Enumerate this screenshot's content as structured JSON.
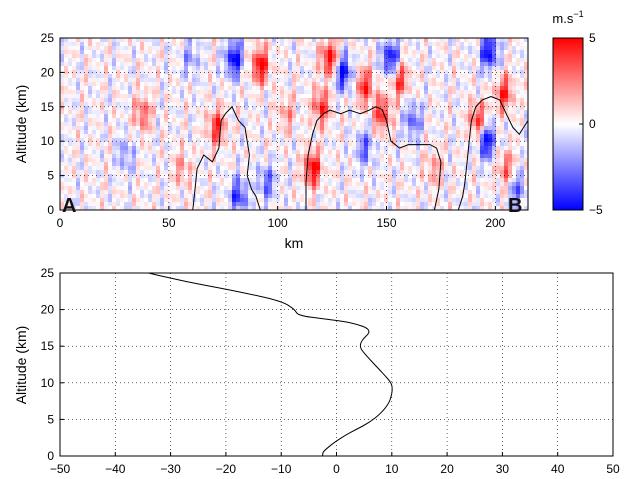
{
  "chart_data": [
    {
      "type": "heatmap",
      "title": "",
      "xlabel": "km",
      "ylabel": "Altitude (km)",
      "xlim": [
        0,
        215
      ],
      "ylim": [
        0,
        25
      ],
      "x_ticks": [
        0,
        50,
        100,
        150,
        200
      ],
      "y_ticks": [
        0,
        5,
        10,
        15,
        20,
        25
      ],
      "grid": true,
      "colormap": {
        "min_color": "#0000ff",
        "mid_color": "#ffffff",
        "max_color": "#ff0000"
      },
      "colorbar": {
        "unit_base": "m.s",
        "unit_exp": "−1",
        "min": -5,
        "max": 5,
        "ticks": [
          "5",
          "0",
          "−5"
        ]
      },
      "endpoint_labels": {
        "start": "A",
        "end": "B"
      },
      "contour_color": "#000000",
      "strong_features": [
        {
          "x": 80,
          "y": 22,
          "value": -5
        },
        {
          "x": 92,
          "y": 21,
          "value": 5
        },
        {
          "x": 72,
          "y": 12,
          "value": 4
        },
        {
          "x": 82,
          "y": 2,
          "value": -4
        },
        {
          "x": 95,
          "y": 4,
          "value": -3
        },
        {
          "x": 116,
          "y": 6,
          "value": 5
        },
        {
          "x": 120,
          "y": 15,
          "value": 4
        },
        {
          "x": 124,
          "y": 22,
          "value": 5
        },
        {
          "x": 130,
          "y": 20,
          "value": -5
        },
        {
          "x": 140,
          "y": 18,
          "value": 4
        },
        {
          "x": 140,
          "y": 9,
          "value": -3
        },
        {
          "x": 148,
          "y": 14,
          "value": 4
        },
        {
          "x": 152,
          "y": 22,
          "value": -5
        },
        {
          "x": 156,
          "y": 19,
          "value": 4
        },
        {
          "x": 162,
          "y": 13,
          "value": -3
        },
        {
          "x": 38,
          "y": 14,
          "value": 3
        },
        {
          "x": 30,
          "y": 8,
          "value": -2
        },
        {
          "x": 56,
          "y": 6,
          "value": 2
        },
        {
          "x": 192,
          "y": 13,
          "value": 4
        },
        {
          "x": 196,
          "y": 10,
          "value": -5
        },
        {
          "x": 197,
          "y": 23,
          "value": -5
        },
        {
          "x": 204,
          "y": 17,
          "value": 4
        },
        {
          "x": 205,
          "y": 6,
          "value": 3
        },
        {
          "x": 210,
          "y": 3,
          "value": -3
        },
        {
          "x": 60,
          "y": 22,
          "value": -2
        },
        {
          "x": 104,
          "y": 14,
          "value": 2
        },
        {
          "x": 172,
          "y": 6,
          "value": 2
        }
      ],
      "contour": [
        [
          [
            61,
            0
          ],
          [
            62,
            3
          ],
          [
            63,
            6
          ],
          [
            66,
            8
          ],
          [
            70,
            7
          ],
          [
            73,
            9
          ],
          [
            74,
            13
          ],
          [
            76,
            14
          ],
          [
            79,
            15
          ],
          [
            82,
            13
          ],
          [
            85,
            12
          ],
          [
            86,
            10
          ],
          [
            87,
            8
          ],
          [
            86,
            5
          ],
          [
            88,
            3
          ],
          [
            90,
            2
          ],
          [
            92,
            0
          ]
        ],
        [
          [
            113,
            0
          ],
          [
            113,
            4
          ],
          [
            114,
            8
          ],
          [
            116,
            11
          ],
          [
            118,
            13
          ],
          [
            121,
            14
          ],
          [
            124,
            14.5
          ],
          [
            129,
            14
          ],
          [
            133,
            14.5
          ],
          [
            138,
            14
          ],
          [
            142,
            14.5
          ],
          [
            145,
            15
          ],
          [
            148,
            14.6
          ],
          [
            150,
            13
          ],
          [
            152,
            10
          ],
          [
            156,
            9
          ],
          [
            160,
            9.5
          ],
          [
            166,
            9.5
          ],
          [
            170,
            9.5
          ],
          [
            173,
            9
          ],
          [
            175,
            7
          ],
          [
            174,
            3
          ],
          [
            172,
            0
          ]
        ],
        [
          [
            183,
            0
          ],
          [
            185,
            2
          ],
          [
            186,
            4
          ],
          [
            187,
            7
          ],
          [
            188,
            10
          ],
          [
            189,
            13
          ],
          [
            191,
            15
          ],
          [
            194,
            16
          ],
          [
            198,
            16.5
          ],
          [
            202,
            16
          ],
          [
            205,
            14
          ],
          [
            208,
            12
          ],
          [
            211,
            11
          ],
          [
            213,
            12
          ],
          [
            215,
            13
          ]
        ]
      ]
    },
    {
      "type": "line",
      "title": "",
      "xlabel": "",
      "ylabel": "Altitude (km)",
      "xlim": [
        -50,
        50
      ],
      "ylim": [
        0,
        25
      ],
      "x_ticks": [
        -50,
        -40,
        -30,
        -20,
        -10,
        0,
        10,
        20,
        30,
        40,
        50
      ],
      "x_tick_labels": [
        "−50",
        "−40",
        "−30",
        "−20",
        "−10",
        "0",
        "10",
        "20",
        "30",
        "40",
        "50"
      ],
      "y_ticks": [
        0,
        5,
        10,
        15,
        20,
        25
      ],
      "grid": true,
      "series": [
        {
          "color": "#000000",
          "x": [
            -2.5,
            -2.5,
            -1.8,
            -0.5,
            1.5,
            3.5,
            6.0,
            8.0,
            9.5,
            10.0,
            10.1,
            9.8,
            8.5,
            7.0,
            5.3,
            4.2,
            4.5,
            6.5,
            3.0,
            -2.0,
            -7.0,
            -7.5,
            -10.0,
            -18.0,
            -25.0,
            -30.0,
            -34.0
          ],
          "y": [
            0.0,
            0.5,
            1.0,
            1.8,
            2.8,
            3.6,
            4.6,
            5.8,
            7.2,
            8.4,
            9.4,
            10.1,
            11.2,
            12.4,
            13.8,
            14.8,
            15.8,
            17.2,
            18.2,
            18.7,
            19.2,
            20.0,
            21.2,
            22.5,
            23.5,
            24.3,
            25.0
          ]
        }
      ]
    }
  ]
}
